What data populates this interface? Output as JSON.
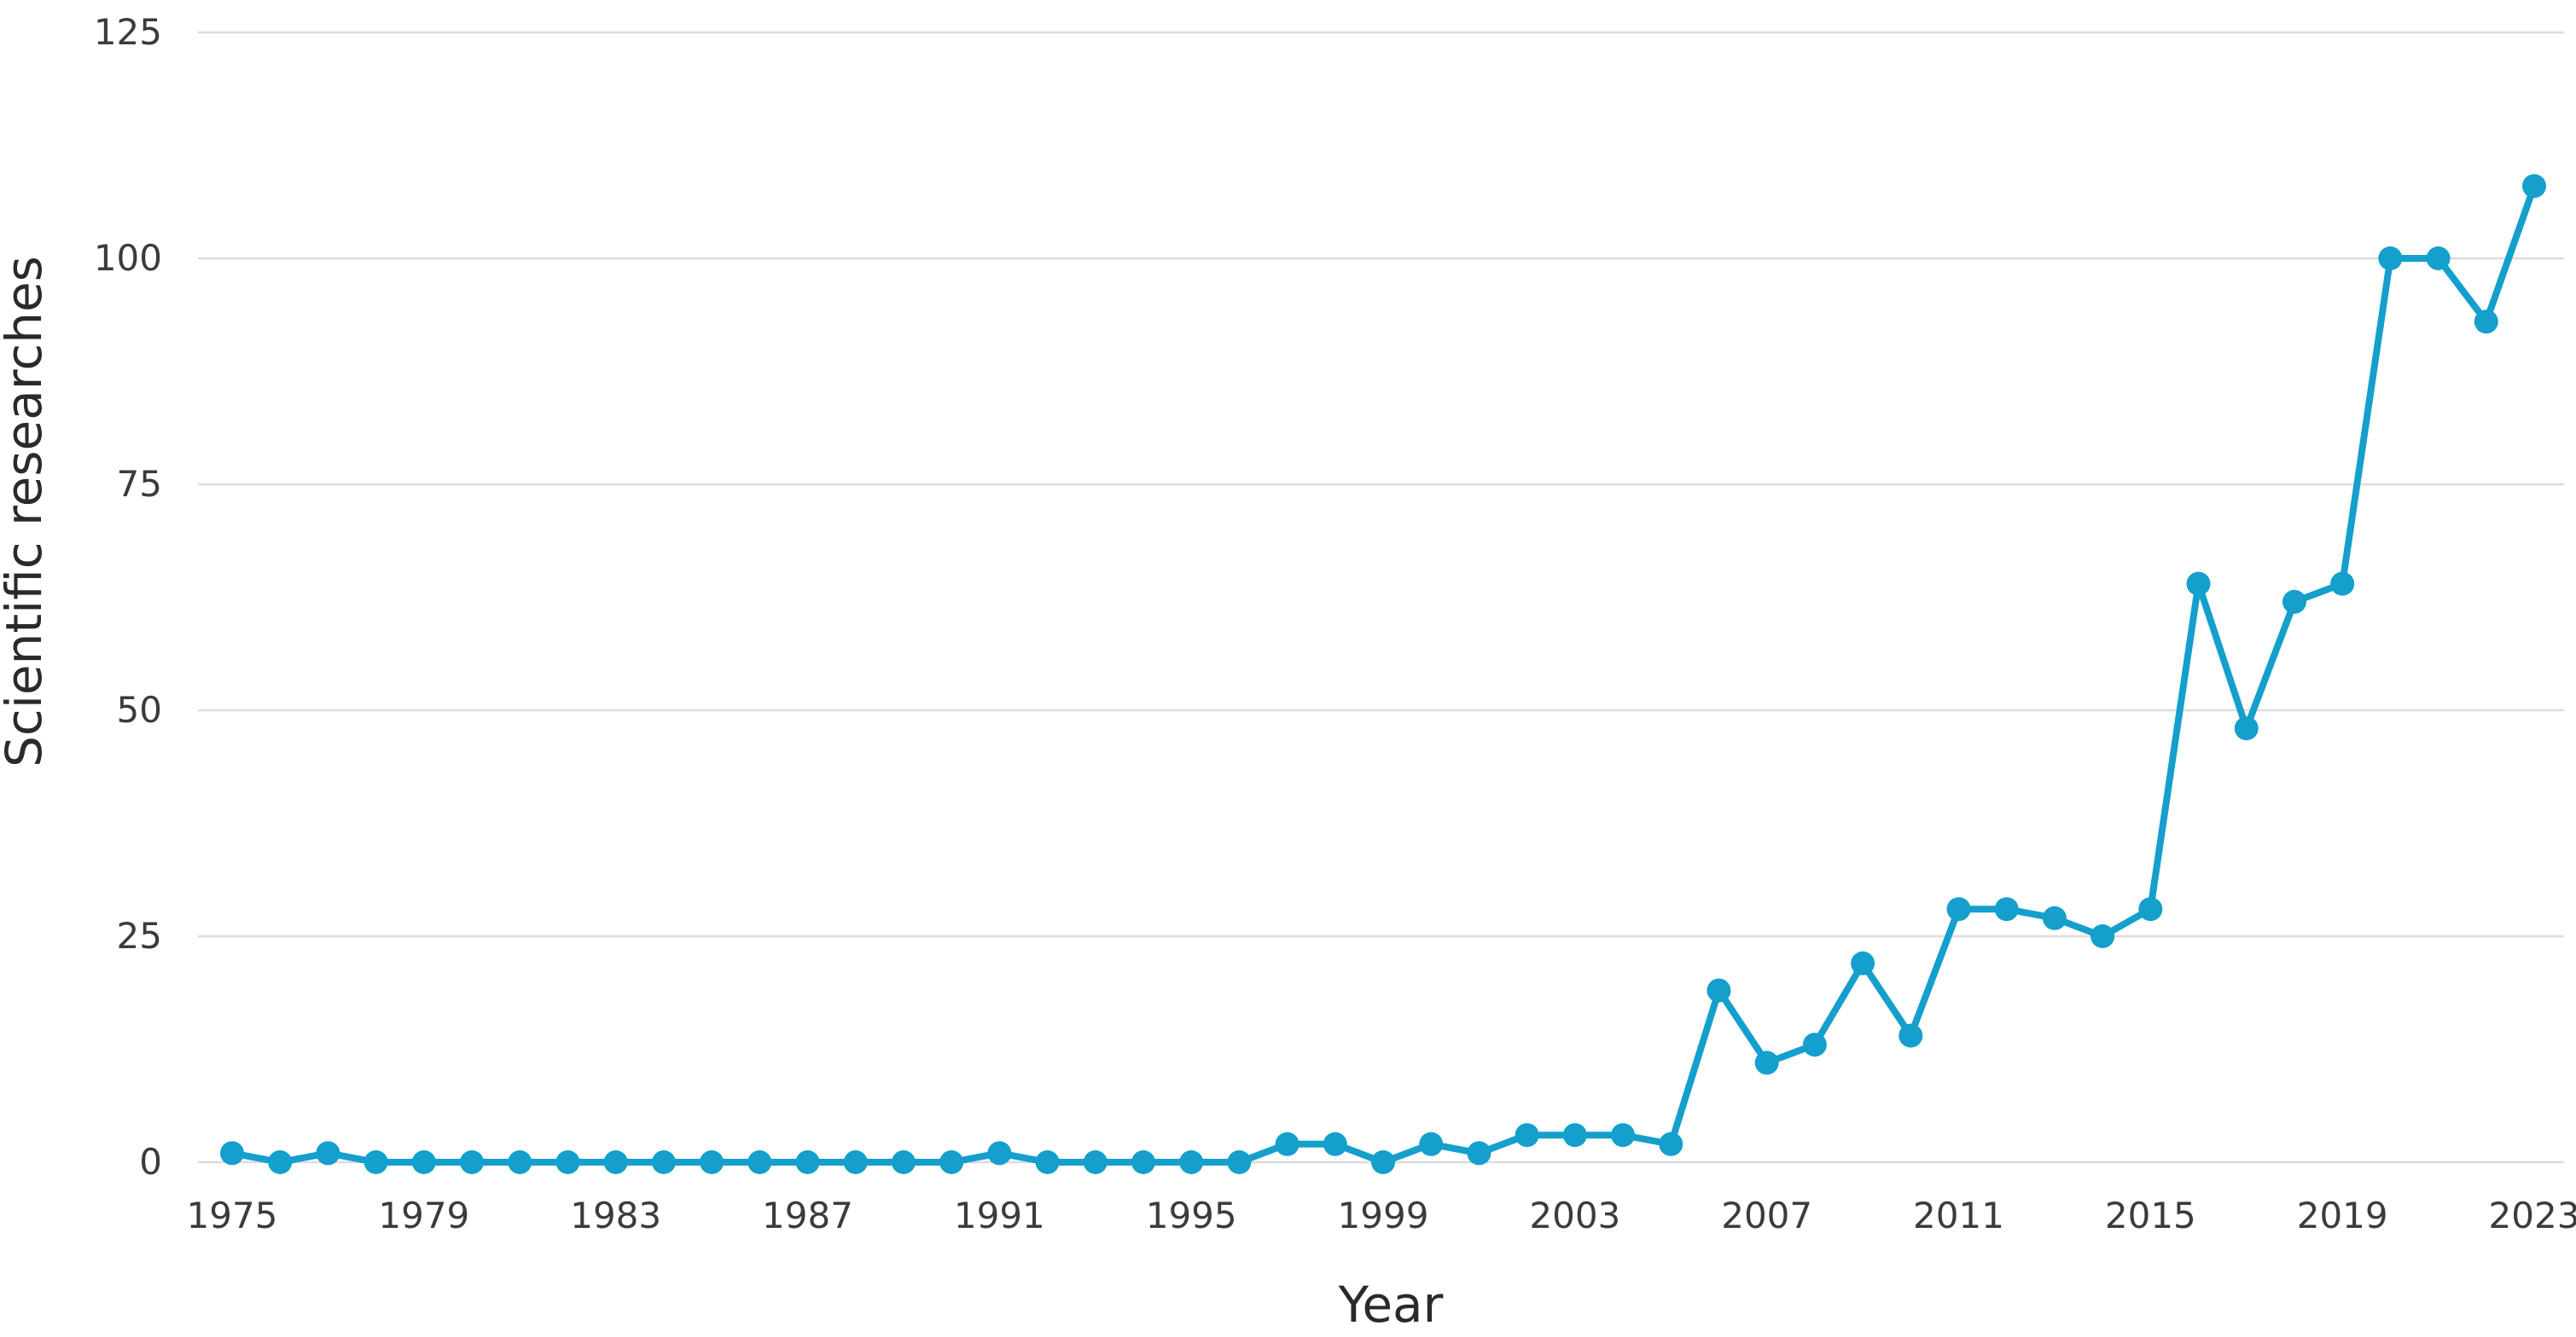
{
  "chart_data": {
    "type": "line",
    "title": "",
    "xlabel": "Year",
    "ylabel": "Scientific researches",
    "ylim": [
      0,
      125
    ],
    "yticks": [
      0,
      25,
      50,
      75,
      100,
      125
    ],
    "xticks": [
      1975,
      1979,
      1983,
      1987,
      1991,
      1995,
      1999,
      2003,
      2007,
      2011,
      2015,
      2019,
      2023
    ],
    "grid": "horizontal",
    "legend": "none",
    "colors": {
      "series": "#149fcc"
    },
    "x": [
      1975,
      1976,
      1977,
      1978,
      1979,
      1980,
      1981,
      1982,
      1983,
      1984,
      1985,
      1986,
      1987,
      1988,
      1989,
      1990,
      1991,
      1992,
      1993,
      1994,
      1995,
      1996,
      1997,
      1998,
      1999,
      2000,
      2001,
      2002,
      2003,
      2004,
      2005,
      2006,
      2007,
      2008,
      2009,
      2010,
      2011,
      2012,
      2013,
      2014,
      2015,
      2016,
      2017,
      2018,
      2019,
      2020,
      2021,
      2022,
      2023
    ],
    "series": [
      {
        "values": [
          1,
          0,
          1,
          0,
          0,
          0,
          0,
          0,
          0,
          0,
          0,
          0,
          0,
          0,
          0,
          0,
          1,
          0,
          0,
          0,
          0,
          0,
          2,
          2,
          0,
          2,
          1,
          3,
          3,
          3,
          2,
          19,
          11,
          13,
          22,
          14,
          28,
          28,
          27,
          25,
          28,
          64,
          48,
          62,
          64,
          100,
          100,
          93,
          108
        ]
      }
    ]
  }
}
